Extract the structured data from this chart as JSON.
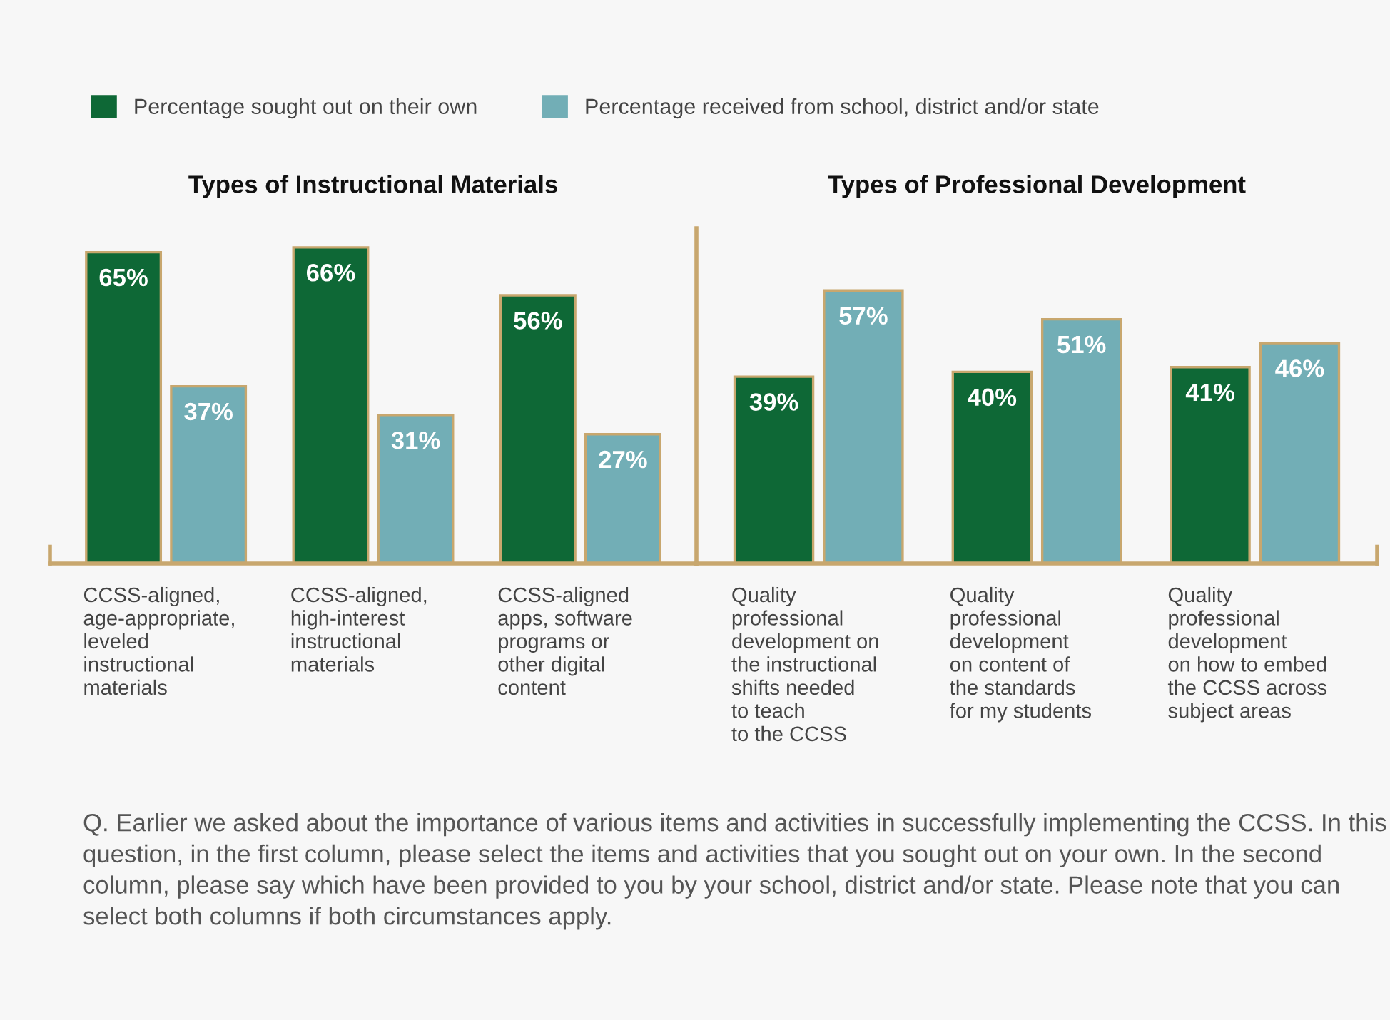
{
  "chart_data": [
    {
      "type": "bar",
      "title": "Types of Instructional Materials",
      "categories": [
        "CCSS-aligned,\nage-appropriate,\nleveled\ninstructional\nmaterials",
        "CCSS-aligned,\nhigh-interest\ninstructional\nmaterials",
        "CCSS-aligned\napps, software\nprograms or\nother digital\ncontent"
      ],
      "series": [
        {
          "name": "Percentage sought out on their own",
          "color": "#0e6836",
          "values": [
            65,
            66,
            56
          ],
          "value_labels": [
            "65%",
            "66%",
            "56%"
          ]
        },
        {
          "name": "Percentage received from school, district and/or state",
          "color": "#72aeb6",
          "values": [
            37,
            31,
            27
          ],
          "value_labels": [
            "37%",
            "31%",
            "27%"
          ]
        }
      ],
      "ylim": [
        0,
        70
      ],
      "tick_labels": "x",
      "legend": "top",
      "annotations": [
        "Q. Earlier we asked about the importance of various items and activities in successfully implementing the CCSS. In this question, in the first column, please select the items and activities that you sought out on your own. In the second column, please say which have been provided to you by your school, district and/or state. Please note that you can select both columns if both circumstances apply."
      ]
    },
    {
      "type": "bar",
      "title": "Types of Professional Development",
      "categories": [
        "Quality\nprofessional\ndevelopment on\nthe instructional\nshifts needed\nto teach\nto the CCSS",
        "Quality\nprofessional\ndevelopment\non content of\nthe standards\nfor my students",
        "Quality\nprofessional\ndevelopment\non how to embed\nthe CCSS across\nsubject areas"
      ],
      "series": [
        {
          "color": "#0e6836",
          "values": [
            39,
            40,
            41
          ],
          "value_labels": [
            "39%",
            "40%",
            "41%"
          ]
        },
        {
          "color": "#72aeb6",
          "values": [
            57,
            51,
            46
          ],
          "value_labels": [
            "57%",
            "51%",
            "46%"
          ]
        }
      ],
      "ylim": [
        0,
        70
      ],
      "tick_labels": "x"
    }
  ]
}
